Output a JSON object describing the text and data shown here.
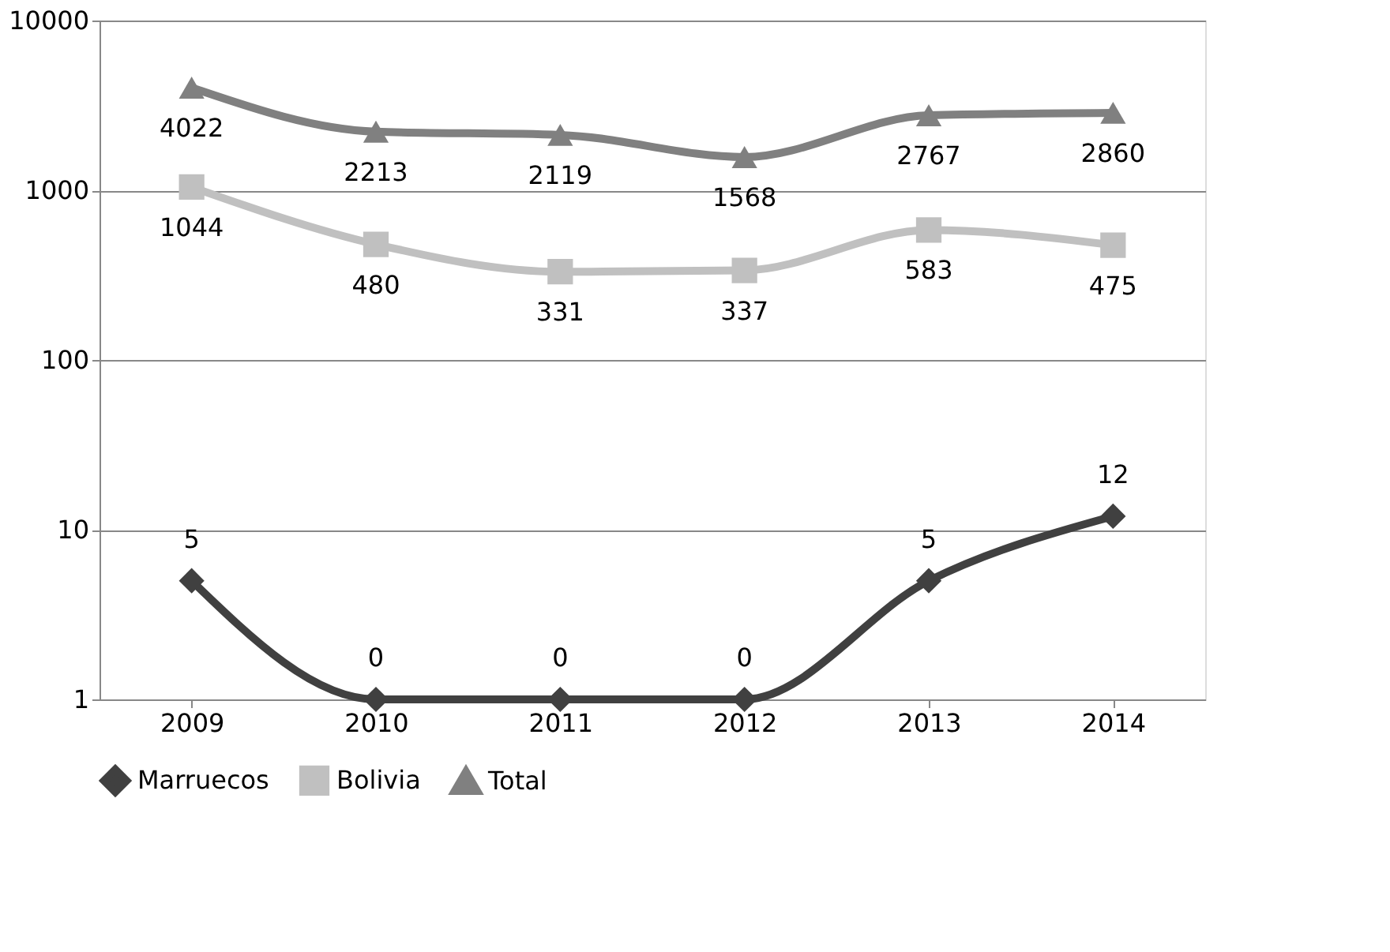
{
  "chart_data": {
    "type": "line",
    "categories": [
      "2009",
      "2010",
      "2011",
      "2012",
      "2013",
      "2014"
    ],
    "series": [
      {
        "name": "Marruecos",
        "color": "#404040",
        "marker": "diamond",
        "values": [
          5,
          1,
          1,
          1,
          5,
          12
        ],
        "value_labels": [
          "5",
          null,
          null,
          null,
          "5",
          "12"
        ]
      },
      {
        "name": "Bolivia",
        "color": "#c0c0c0",
        "marker": "square",
        "values": [
          1044,
          480,
          331,
          337,
          583,
          475
        ]
      },
      {
        "name": "Total",
        "color": "#808080",
        "marker": "triangle",
        "values": [
          4022,
          2213,
          2119,
          1568,
          2767,
          2860
        ]
      }
    ],
    "log": true,
    "ylim": [
      1,
      10000
    ],
    "yticks": [
      1,
      10,
      100,
      1000,
      10000
    ],
    "grid": "y",
    "legend": "bottom",
    "data_labels": true,
    "annotations": [
      {
        "text": "0",
        "x": "2010",
        "y": 1
      },
      {
        "text": "0",
        "x": "2011",
        "y": 1
      },
      {
        "text": "0",
        "x": "2012",
        "y": 1
      }
    ]
  }
}
